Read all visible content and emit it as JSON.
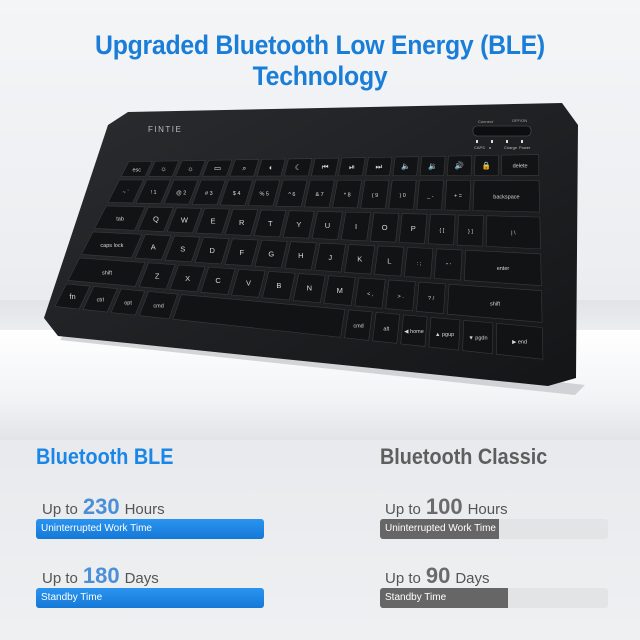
{
  "title": "Upgraded Bluetooth Low Energy (BLE) Technology",
  "keyboard": {
    "brand": "FINTIE",
    "switch_labels": [
      "Connect",
      "OFF/ON"
    ],
    "indicator_labels": [
      "CAPS",
      "ʙ",
      "Charge",
      "Power"
    ],
    "rows": [
      [
        "esc",
        "☼",
        "☼",
        "▭",
        "⌕",
        "◐",
        "☾",
        "⏮",
        "⏯",
        "⏭",
        "🔈",
        "🔉",
        "🔊",
        "🔒",
        "delete"
      ],
      [
        "~ `",
        "! 1",
        "@ 2",
        "# 3",
        "$ 4",
        "% 5",
        "^ 6",
        "& 7",
        "* 8",
        "( 9",
        ") 0",
        "_ -",
        "+ =",
        "backspace"
      ],
      [
        "tab",
        "Q",
        "W",
        "E",
        "R",
        "T",
        "Y",
        "U",
        "I",
        "O",
        "P",
        "{ [",
        "} ]",
        "| \\"
      ],
      [
        "caps lock",
        "A",
        "S",
        "D",
        "F",
        "G",
        "H",
        "J",
        "K",
        "L",
        ": ;",
        "\" '",
        "enter"
      ],
      [
        "shift",
        "Z",
        "X",
        "C",
        "V",
        "B",
        "N",
        "M",
        "< ,",
        "> .",
        "? /",
        "shift"
      ],
      [
        "fn",
        "ctrl",
        "opt",
        "cmd",
        "",
        "cmd",
        "alt",
        "◀ home",
        "▲ pgup",
        "▼ pgdn",
        "▶ end"
      ]
    ]
  },
  "colors": {
    "ble": "#1a86e8",
    "classic": "#666666",
    "keyboard": "#1c1d1f"
  },
  "ble": {
    "heading": "Bluetooth BLE",
    "work": {
      "prefix": "Up to",
      "value": "230",
      "unit": "Hours",
      "bar_label": "Uninterrupted Work Time",
      "fill": 1.0
    },
    "standby": {
      "prefix": "Up to",
      "value": "180",
      "unit": "Days",
      "bar_label": "Standby Time",
      "fill": 1.0
    }
  },
  "classic": {
    "heading": "Bluetooth Classic",
    "work": {
      "prefix": "Up to",
      "value": "100",
      "unit": "Hours",
      "bar_label": "Uninterrupted Work Time",
      "fill": 0.52
    },
    "standby": {
      "prefix": "Up to",
      "value": "90",
      "unit": "Days",
      "bar_label": "Standby Time",
      "fill": 0.56
    }
  }
}
